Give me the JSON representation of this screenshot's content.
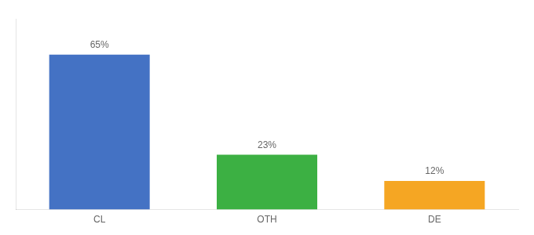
{
  "chart_data": {
    "type": "bar",
    "categories": [
      "CL",
      "OTH",
      "DE"
    ],
    "values": [
      65,
      23,
      12
    ],
    "value_labels": [
      "65%",
      "23%",
      "12%"
    ],
    "colors": [
      "#4472c4",
      "#3cb043",
      "#f5a623"
    ],
    "ylim": [
      0,
      80
    ],
    "grid": false,
    "data_labels": true,
    "tick_labels": "x"
  }
}
